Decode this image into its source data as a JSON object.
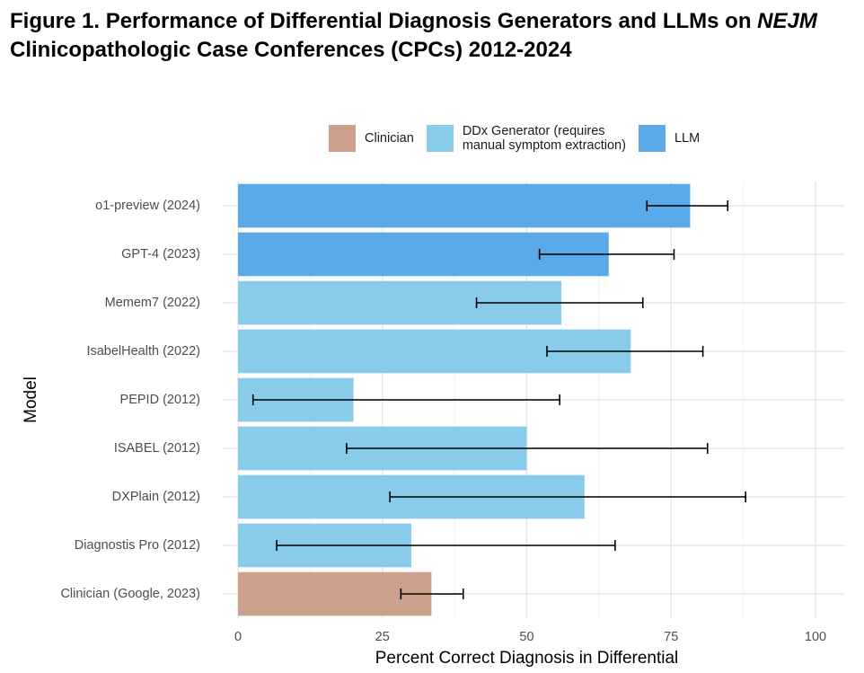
{
  "figure": {
    "title_prefix": "Figure 1. Performance of Differential Diagnosis Generators and LLMs on ",
    "title_em": "NEJM",
    "title_suffix": " Clinicopathologic Case Conferences (CPCs) 2012-2024"
  },
  "chart_data": {
    "type": "bar",
    "orientation": "horizontal",
    "xlabel": "Percent Correct Diagnosis in Differential",
    "ylabel": "Model",
    "xlim": [
      0,
      100
    ],
    "xticks": [
      0,
      25,
      50,
      75,
      100
    ],
    "grid": true,
    "legend": {
      "position": "top",
      "entries": [
        {
          "key": "Clinician",
          "label": "Clinician",
          "color": "#cca18b"
        },
        {
          "key": "DDx",
          "label": "DDx Generator (requires\nmanual symptom extraction)",
          "color": "#88cbeb"
        },
        {
          "key": "LLM",
          "label": "LLM",
          "color": "#5aa9e8"
        }
      ]
    },
    "bars": [
      {
        "category": "o1-preview (2024)",
        "group": "LLM",
        "value": 78.3,
        "ci_low": 70.8,
        "ci_high": 84.8
      },
      {
        "category": "GPT-4 (2023)",
        "group": "LLM",
        "value": 64.2,
        "ci_low": 52.2,
        "ci_high": 75.5
      },
      {
        "category": "Memem7 (2022)",
        "group": "DDx",
        "value": 56.0,
        "ci_low": 41.3,
        "ci_high": 70.1
      },
      {
        "category": "IsabelHealth (2022)",
        "group": "DDx",
        "value": 68.0,
        "ci_low": 53.5,
        "ci_high": 80.5
      },
      {
        "category": "PEPID (2012)",
        "group": "DDx",
        "value": 20.0,
        "ci_low": 2.6,
        "ci_high": 55.7
      },
      {
        "category": "ISABEL (2012)",
        "group": "DDx",
        "value": 50.0,
        "ci_low": 18.8,
        "ci_high": 81.3
      },
      {
        "category": "DXPlain (2012)",
        "group": "DDx",
        "value": 60.0,
        "ci_low": 26.3,
        "ci_high": 87.9
      },
      {
        "category": "Diagnostis Pro (2012)",
        "group": "DDx",
        "value": 30.0,
        "ci_low": 6.7,
        "ci_high": 65.3
      },
      {
        "category": "Clinician (Google, 2023)",
        "group": "Clinician",
        "value": 33.5,
        "ci_low": 28.2,
        "ci_high": 39.0
      }
    ]
  }
}
